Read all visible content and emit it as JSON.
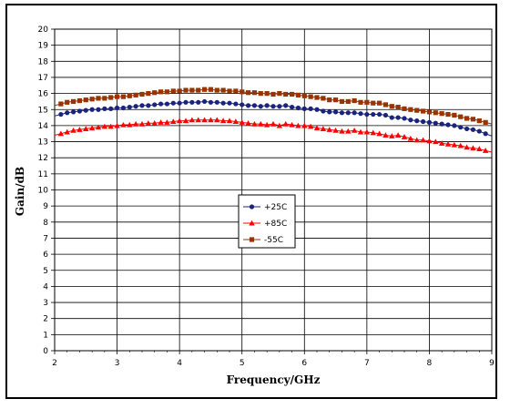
{
  "chart_data": {
    "type": "line",
    "title": "",
    "xlabel": "Frequency/GHz",
    "ylabel": "Gain/dB",
    "xlim": [
      2,
      9
    ],
    "ylim": [
      0,
      20
    ],
    "x_ticks": [
      2,
      3,
      4,
      5,
      6,
      7,
      8,
      9
    ],
    "y_ticks": [
      0,
      1,
      2,
      3,
      4,
      5,
      6,
      7,
      8,
      9,
      10,
      11,
      12,
      13,
      14,
      15,
      16,
      17,
      18,
      19,
      20
    ],
    "grid": true,
    "legend_position": "center",
    "x": [
      2.1,
      2.2,
      2.3,
      2.4,
      2.5,
      2.6,
      2.7,
      2.8,
      2.9,
      3.0,
      3.1,
      3.2,
      3.3,
      3.4,
      3.5,
      3.6,
      3.7,
      3.8,
      3.9,
      4.0,
      4.1,
      4.2,
      4.3,
      4.4,
      4.5,
      4.6,
      4.7,
      4.8,
      4.9,
      5.0,
      5.1,
      5.2,
      5.3,
      5.4,
      5.5,
      5.6,
      5.7,
      5.8,
      5.9,
      6.0,
      6.1,
      6.2,
      6.3,
      6.4,
      6.5,
      6.6,
      6.7,
      6.8,
      6.9,
      7.0,
      7.1,
      7.2,
      7.3,
      7.4,
      7.5,
      7.6,
      7.7,
      7.8,
      7.9,
      8.0,
      8.1,
      8.2,
      8.3,
      8.4,
      8.5,
      8.6,
      8.7,
      8.8,
      8.9
    ],
    "series": [
      {
        "name": "+25C",
        "color": "#1a237e",
        "marker": "circle",
        "values": [
          14.7,
          14.8,
          14.85,
          14.9,
          14.95,
          15.0,
          15.0,
          15.05,
          15.05,
          15.1,
          15.1,
          15.15,
          15.2,
          15.25,
          15.25,
          15.3,
          15.35,
          15.35,
          15.4,
          15.4,
          15.45,
          15.45,
          15.45,
          15.5,
          15.45,
          15.45,
          15.4,
          15.4,
          15.35,
          15.3,
          15.25,
          15.25,
          15.2,
          15.25,
          15.2,
          15.2,
          15.25,
          15.15,
          15.1,
          15.05,
          15.05,
          15.0,
          14.9,
          14.85,
          14.85,
          14.8,
          14.8,
          14.8,
          14.75,
          14.7,
          14.7,
          14.7,
          14.65,
          14.5,
          14.5,
          14.45,
          14.35,
          14.3,
          14.25,
          14.2,
          14.15,
          14.1,
          14.05,
          14.0,
          13.9,
          13.8,
          13.75,
          13.65,
          13.5
        ]
      },
      {
        "name": "+85C",
        "color": "#ff0000",
        "marker": "triangle",
        "values": [
          13.5,
          13.6,
          13.7,
          13.75,
          13.8,
          13.85,
          13.9,
          13.95,
          13.95,
          14.0,
          14.05,
          14.05,
          14.1,
          14.1,
          14.15,
          14.15,
          14.2,
          14.2,
          14.25,
          14.3,
          14.3,
          14.35,
          14.35,
          14.35,
          14.35,
          14.35,
          14.3,
          14.3,
          14.25,
          14.2,
          14.15,
          14.1,
          14.1,
          14.05,
          14.1,
          14.0,
          14.1,
          14.05,
          14.0,
          14.0,
          13.95,
          13.85,
          13.8,
          13.75,
          13.7,
          13.65,
          13.65,
          13.7,
          13.6,
          13.6,
          13.55,
          13.5,
          13.4,
          13.35,
          13.4,
          13.3,
          13.2,
          13.1,
          13.1,
          13.05,
          13.0,
          12.9,
          12.85,
          12.8,
          12.75,
          12.65,
          12.6,
          12.55,
          12.45
        ]
      },
      {
        "name": "-55C",
        "color": "#993300",
        "marker": "square",
        "values": [
          15.35,
          15.45,
          15.5,
          15.55,
          15.6,
          15.65,
          15.7,
          15.7,
          15.75,
          15.8,
          15.8,
          15.85,
          15.9,
          15.95,
          16.0,
          16.05,
          16.1,
          16.1,
          16.15,
          16.15,
          16.2,
          16.2,
          16.2,
          16.25,
          16.25,
          16.2,
          16.2,
          16.15,
          16.15,
          16.1,
          16.05,
          16.05,
          16.0,
          16.0,
          15.95,
          16.0,
          15.95,
          15.95,
          15.9,
          15.85,
          15.8,
          15.75,
          15.7,
          15.6,
          15.6,
          15.5,
          15.5,
          15.55,
          15.45,
          15.45,
          15.4,
          15.4,
          15.3,
          15.2,
          15.15,
          15.05,
          15.0,
          14.95,
          14.9,
          14.85,
          14.8,
          14.75,
          14.7,
          14.65,
          14.55,
          14.45,
          14.4,
          14.3,
          14.2
        ]
      }
    ]
  }
}
